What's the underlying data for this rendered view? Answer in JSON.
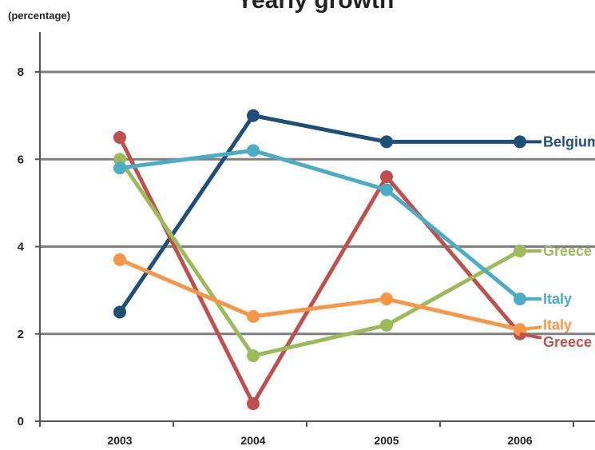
{
  "chart_data": {
    "type": "line",
    "title": "Yearly growth",
    "ylabel": "(percentage)",
    "xlabel": "",
    "categories": [
      "2003",
      "2004",
      "2005",
      "2006"
    ],
    "ylim": [
      0,
      8
    ],
    "yticks": [
      0,
      2,
      4,
      6,
      8
    ],
    "grid": true,
    "legend": "end-of-line labels",
    "series": [
      {
        "name": "Belgium",
        "color": "#1f4e79",
        "values": [
          2.5,
          7.0,
          6.4,
          6.4
        ]
      },
      {
        "name": "Greece",
        "color": "#c0504d",
        "values": [
          6.5,
          0.4,
          5.6,
          2.0
        ]
      },
      {
        "name": "Greece",
        "color": "#9bbb59",
        "values": [
          6.0,
          1.5,
          2.2,
          3.9
        ]
      },
      {
        "name": "Italy",
        "color": "#4bacc6",
        "values": [
          5.8,
          6.2,
          5.3,
          2.8
        ]
      },
      {
        "name": "Italy",
        "color": "#f79646",
        "values": [
          3.7,
          2.4,
          2.8,
          2.1
        ]
      }
    ]
  }
}
